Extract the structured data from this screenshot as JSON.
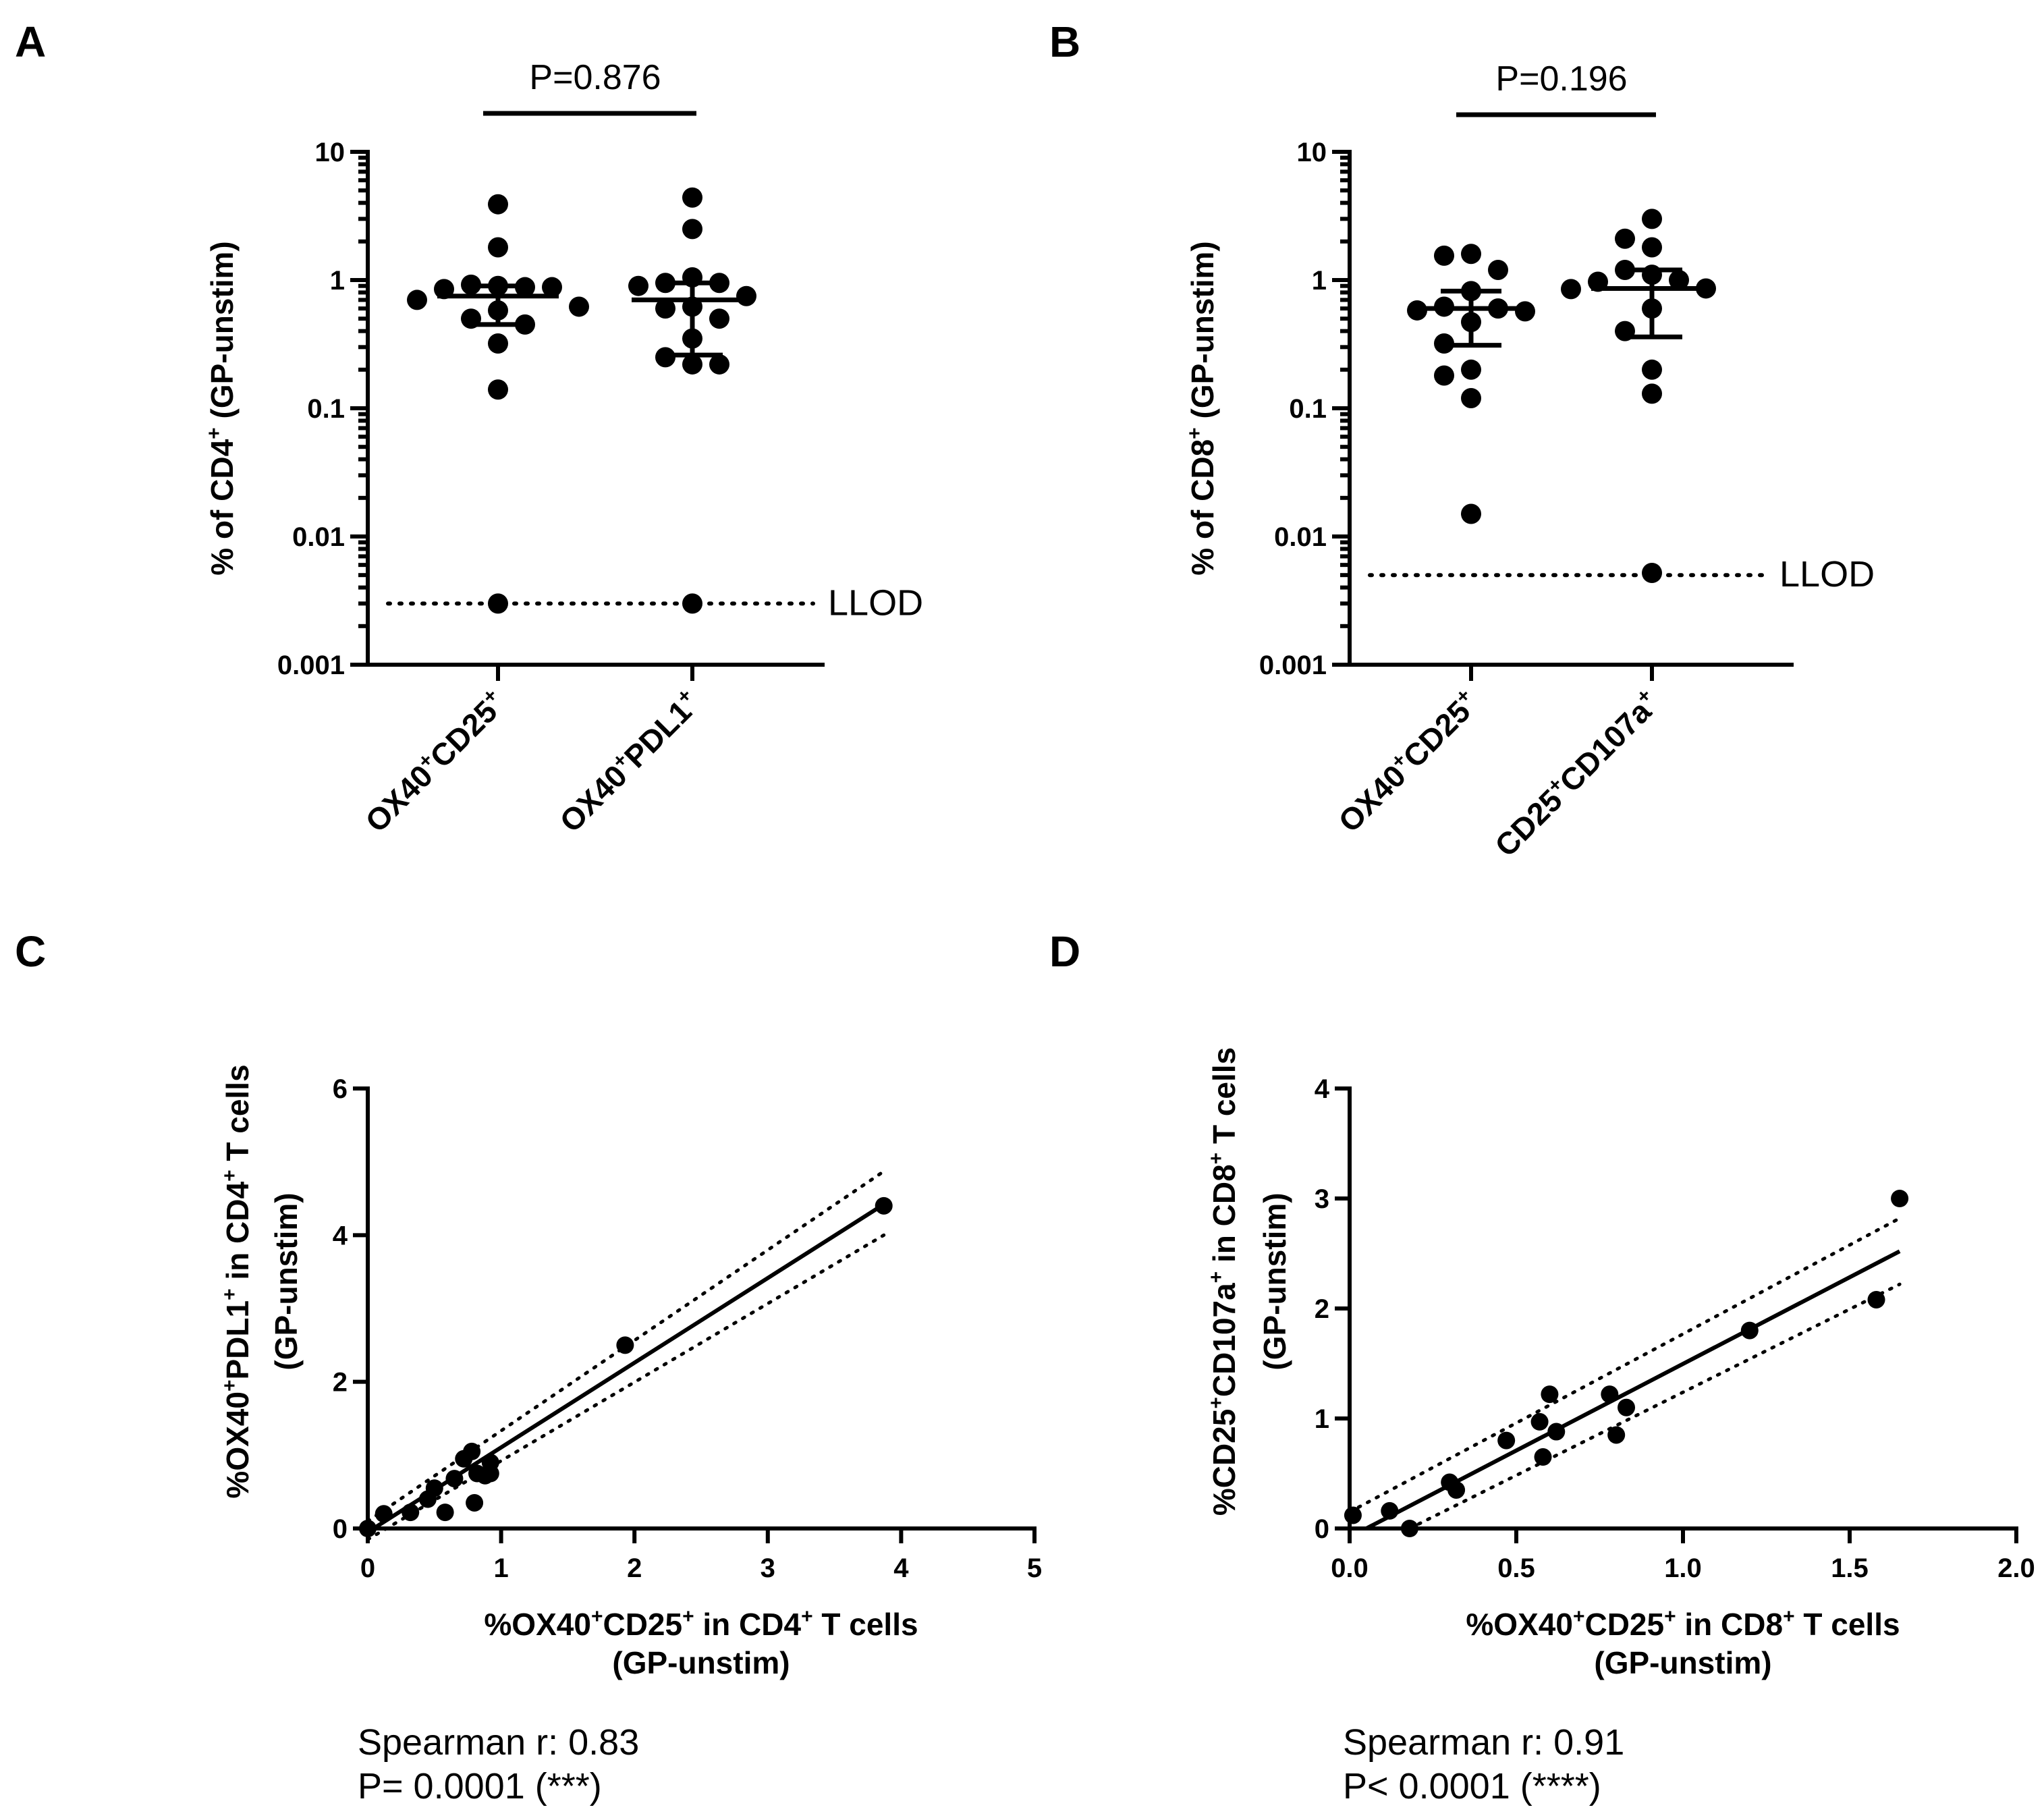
{
  "chart_data": [
    {
      "panel": "A",
      "type": "scatter",
      "yscale": "log",
      "ylim": [
        0.001,
        10
      ],
      "yticks": [
        "0.001",
        "0.01",
        "0.1",
        "1",
        "10"
      ],
      "ylabel": [
        "% of CD4",
        "+",
        " (GP-unstim)"
      ],
      "categories": [
        [
          "OX40",
          "+",
          "CD25",
          "+"
        ],
        [
          "OX40",
          "+",
          "PDL1",
          "+"
        ]
      ],
      "comparison": "P=0.876",
      "llod_label": "LLOD",
      "llod": 0.003,
      "groups": [
        {
          "values": [
            3.9,
            1.8,
            0.9,
            0.92,
            0.88,
            0.85,
            0.88,
            0.7,
            0.62,
            0.58,
            0.5,
            0.45,
            0.32,
            0.14,
            0.003
          ],
          "median": 0.75,
          "q1": 0.45,
          "q3": 0.9
        },
        {
          "values": [
            4.4,
            2.5,
            1.05,
            0.95,
            0.95,
            0.9,
            0.75,
            0.62,
            0.6,
            0.5,
            0.35,
            0.25,
            0.22,
            0.22,
            0.003
          ],
          "median": 0.7,
          "q1": 0.26,
          "q3": 0.95
        }
      ]
    },
    {
      "panel": "B",
      "type": "scatter",
      "yscale": "log",
      "ylim": [
        0.001,
        10
      ],
      "yticks": [
        "0.001",
        "0.01",
        "0.1",
        "1",
        "10"
      ],
      "ylabel": [
        "% of CD8",
        "+",
        " (GP-unstim)"
      ],
      "categories": [
        [
          "OX40",
          "+",
          "CD25",
          "+"
        ],
        [
          "CD25",
          "+",
          "CD107a",
          "+"
        ]
      ],
      "comparison": "P=0.196",
      "llod_label": "LLOD",
      "llod": 0.005,
      "groups": [
        {
          "values": [
            1.6,
            1.55,
            1.2,
            0.82,
            0.62,
            0.6,
            0.58,
            0.57,
            0.47,
            0.32,
            0.2,
            0.18,
            0.12,
            0.015
          ],
          "median": 0.6,
          "q1": 0.31,
          "q3": 0.82
        },
        {
          "values": [
            3.0,
            2.1,
            1.8,
            1.2,
            1.1,
            1.0,
            0.97,
            0.86,
            0.85,
            0.6,
            0.4,
            0.2,
            0.13,
            0.0052
          ],
          "median": 0.86,
          "q1": 0.36,
          "q3": 1.2
        }
      ]
    },
    {
      "panel": "C",
      "type": "scatter",
      "xlim": [
        0,
        5
      ],
      "ylim": [
        0,
        6
      ],
      "xticks": [
        "0",
        "1",
        "2",
        "3",
        "4",
        "5"
      ],
      "yticks": [
        "0",
        "2",
        "4",
        "6"
      ],
      "xlabel": [
        "%OX40",
        "+",
        "CD25",
        "+",
        " in CD4",
        "+",
        " T cells"
      ],
      "xlabel2": "(GP-unstim)",
      "ylabel": [
        "%OX40",
        "+",
        "PDL1",
        "+",
        " in CD4",
        "+",
        " T cells"
      ],
      "ylabel2": "(GP-unstim)",
      "x": [
        0,
        0.12,
        0.32,
        0.45,
        0.5,
        0.58,
        0.65,
        0.72,
        0.78,
        0.8,
        0.82,
        0.88,
        0.92,
        0.92,
        1.93,
        3.87
      ],
      "y": [
        0,
        0.2,
        0.22,
        0.4,
        0.55,
        0.22,
        0.68,
        0.95,
        1.05,
        0.35,
        0.75,
        0.72,
        0.9,
        0.75,
        2.5,
        4.4
      ],
      "fit": {
        "x": [
          0,
          3.87
        ],
        "y": [
          -0.05,
          4.42
        ]
      },
      "ci_upper": {
        "x": [
          0,
          3.87
        ],
        "y": [
          0.1,
          4.87
        ]
      },
      "ci_lower": {
        "x": [
          0,
          3.87
        ],
        "y": [
          -0.15,
          4.0
        ]
      },
      "stat1": "Spearman r: 0.83",
      "stat2": "P= 0.0001 (***)"
    },
    {
      "panel": "D",
      "type": "scatter",
      "xlim": [
        0,
        2.0
      ],
      "ylim": [
        0,
        4
      ],
      "xticks": [
        "0.0",
        "0.5",
        "1.0",
        "1.5",
        "2.0"
      ],
      "yticks": [
        "0",
        "1",
        "2",
        "3",
        "4"
      ],
      "xlabel": [
        "%OX40",
        "+",
        "CD25",
        "+",
        " in CD8",
        "+",
        " T cells"
      ],
      "xlabel2": "(GP-unstim)",
      "ylabel": [
        "%CD25",
        "+",
        "CD107a",
        "+",
        " in CD8",
        "+",
        " T cells"
      ],
      "ylabel2": "(GP-unstim)",
      "x": [
        0.01,
        0.12,
        0.18,
        0.3,
        0.32,
        0.47,
        0.57,
        0.58,
        0.6,
        0.62,
        0.78,
        0.8,
        0.83,
        1.2,
        1.58,
        1.65
      ],
      "y": [
        0.12,
        0.16,
        0.0,
        0.42,
        0.35,
        0.8,
        0.97,
        0.65,
        1.22,
        0.88,
        1.22,
        0.85,
        1.1,
        1.8,
        2.08,
        3.0
      ],
      "fit": {
        "x": [
          0.05,
          1.65
        ],
        "y": [
          0.0,
          2.52
        ]
      },
      "ci_upper": {
        "x": [
          0.0,
          1.65
        ],
        "y": [
          0.15,
          2.82
        ]
      },
      "ci_lower": {
        "x": [
          0.18,
          1.65
        ],
        "y": [
          0.0,
          2.22
        ]
      },
      "stat1": "Spearman r: 0.91",
      "stat2": "P< 0.0001 (****)"
    }
  ]
}
